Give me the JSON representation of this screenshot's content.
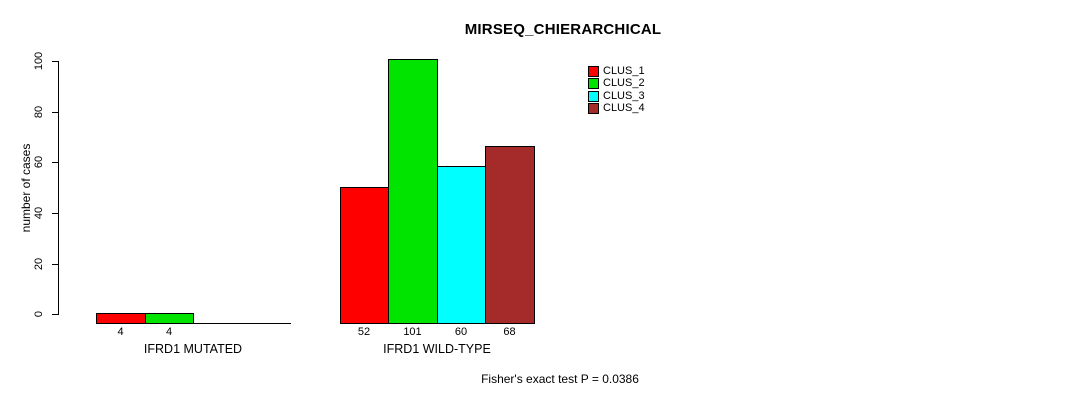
{
  "title": "MIRSEQ_CHIERARCHICAL",
  "chart_data": {
    "type": "bar",
    "title": "MIRSEQ_CHIERARCHICAL",
    "ylabel": "number of cases",
    "xlabel": "",
    "ylim": [
      0,
      105
    ],
    "yticks": [
      0,
      20,
      40,
      60,
      80,
      100
    ],
    "grid": false,
    "legend_position": "top-right",
    "categories": [
      "IFRD1 MUTATED",
      "IFRD1 WILD-TYPE"
    ],
    "series": [
      {
        "name": "CLUS_1",
        "color": "#FF0000",
        "values": [
          4,
          52
        ]
      },
      {
        "name": "CLUS_2",
        "color": "#00E400",
        "values": [
          4,
          101
        ]
      },
      {
        "name": "CLUS_3",
        "color": "#00FFFF",
        "values": [
          0,
          60
        ]
      },
      {
        "name": "CLUS_4",
        "color": "#A52A2A",
        "values": [
          0,
          68
        ]
      }
    ],
    "bar_value_labels": [
      [
        "4",
        "4"
      ],
      [
        "52",
        "101",
        "60",
        "68"
      ]
    ],
    "annotation": "Fisher's exact test P = 0.0386",
    "axis_color": "#000000",
    "text_color": "#000000",
    "background": "#FFFFFF"
  }
}
